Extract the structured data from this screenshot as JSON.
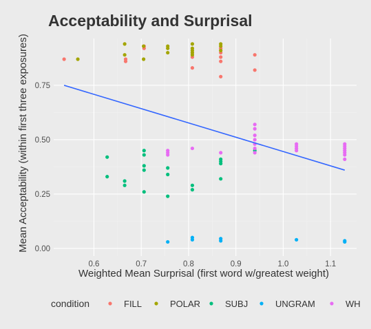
{
  "chart_data": {
    "type": "scatter",
    "title": "Acceptability and Surprisal",
    "xlabel": "Weighted Mean Surprisal (first word w/greatest weight)",
    "ylabel": "Mean Acceptability (within first three exposures)",
    "xlim": [
      0.515,
      1.155
    ],
    "ylim": [
      -0.035,
      0.965
    ],
    "xticks": [
      0.6,
      0.7,
      0.8,
      0.9,
      1.0,
      1.1
    ],
    "xtick_labels": [
      "0.6",
      "0.7",
      "0.8",
      "0.9",
      "1.0",
      "1.1"
    ],
    "yticks": [
      0.0,
      0.25,
      0.5,
      0.75
    ],
    "ytick_labels": [
      "0.00",
      "0.25",
      "0.50",
      "0.75"
    ],
    "grid": true,
    "legend": {
      "title": "condition",
      "position": "bottom"
    },
    "series": [
      {
        "name": "FILL",
        "color": "#F8766D",
        "points": [
          [
            0.537,
            0.87
          ],
          [
            0.667,
            0.86
          ],
          [
            0.667,
            0.87
          ],
          [
            0.706,
            0.92
          ],
          [
            0.706,
            0.93
          ],
          [
            0.808,
            0.83
          ],
          [
            0.808,
            0.88
          ],
          [
            0.808,
            0.9
          ],
          [
            0.868,
            0.79
          ],
          [
            0.868,
            0.86
          ],
          [
            0.868,
            0.88
          ],
          [
            0.868,
            0.9
          ],
          [
            0.868,
            0.92
          ],
          [
            0.94,
            0.82
          ],
          [
            0.94,
            0.89
          ]
        ]
      },
      {
        "name": "POLAR",
        "color": "#A3A500",
        "points": [
          [
            0.566,
            0.87
          ],
          [
            0.665,
            0.94
          ],
          [
            0.665,
            0.89
          ],
          [
            0.705,
            0.87
          ],
          [
            0.705,
            0.93
          ],
          [
            0.756,
            0.9
          ],
          [
            0.756,
            0.92
          ],
          [
            0.756,
            0.93
          ],
          [
            0.808,
            0.89
          ],
          [
            0.808,
            0.9
          ],
          [
            0.808,
            0.91
          ],
          [
            0.808,
            0.92
          ],
          [
            0.808,
            0.94
          ],
          [
            0.868,
            0.91
          ],
          [
            0.868,
            0.93
          ],
          [
            0.868,
            0.94
          ]
        ]
      },
      {
        "name": "SUBJ",
        "color": "#00BF7D",
        "points": [
          [
            0.628,
            0.42
          ],
          [
            0.628,
            0.33
          ],
          [
            0.665,
            0.31
          ],
          [
            0.665,
            0.29
          ],
          [
            0.706,
            0.45
          ],
          [
            0.706,
            0.43
          ],
          [
            0.706,
            0.38
          ],
          [
            0.706,
            0.36
          ],
          [
            0.706,
            0.26
          ],
          [
            0.756,
            0.37
          ],
          [
            0.756,
            0.34
          ],
          [
            0.756,
            0.24
          ],
          [
            0.808,
            0.29
          ],
          [
            0.808,
            0.27
          ],
          [
            0.868,
            0.41
          ],
          [
            0.868,
            0.4
          ],
          [
            0.868,
            0.39
          ],
          [
            0.868,
            0.32
          ],
          [
            0.94,
            0.45
          ]
        ]
      },
      {
        "name": "UNGRAM",
        "color": "#00B0F6",
        "points": [
          [
            0.756,
            0.03
          ],
          [
            0.808,
            0.05
          ],
          [
            0.808,
            0.04
          ],
          [
            0.868,
            0.045
          ],
          [
            0.868,
            0.035
          ],
          [
            1.028,
            0.04
          ],
          [
            1.13,
            0.035
          ],
          [
            1.13,
            0.03
          ]
        ]
      },
      {
        "name": "WH",
        "color": "#E76BF3",
        "points": [
          [
            0.756,
            0.45
          ],
          [
            0.756,
            0.44
          ],
          [
            0.756,
            0.43
          ],
          [
            0.808,
            0.46
          ],
          [
            0.868,
            0.44
          ],
          [
            0.94,
            0.57
          ],
          [
            0.94,
            0.55
          ],
          [
            0.94,
            0.52
          ],
          [
            0.94,
            0.5
          ],
          [
            0.94,
            0.48
          ],
          [
            0.94,
            0.46
          ],
          [
            0.94,
            0.44
          ],
          [
            1.028,
            0.48
          ],
          [
            1.028,
            0.47
          ],
          [
            1.028,
            0.46
          ],
          [
            1.028,
            0.45
          ],
          [
            1.13,
            0.48
          ],
          [
            1.13,
            0.47
          ],
          [
            1.13,
            0.46
          ],
          [
            1.13,
            0.45
          ],
          [
            1.13,
            0.44
          ],
          [
            1.13,
            0.43
          ],
          [
            1.13,
            0.41
          ]
        ]
      }
    ],
    "trend_line": {
      "color": "#3366FF",
      "x": [
        0.537,
        1.13
      ],
      "y": [
        0.75,
        0.36
      ]
    }
  }
}
